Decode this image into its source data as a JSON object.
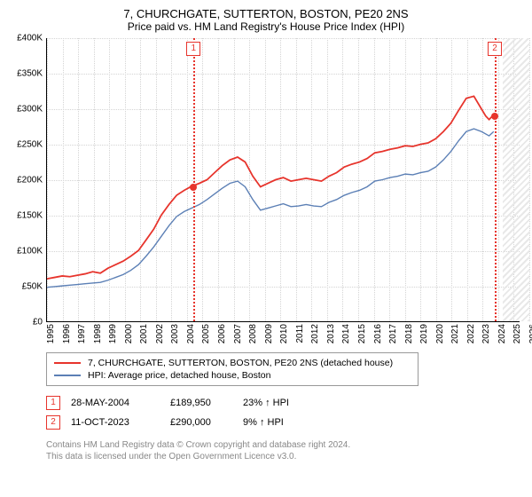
{
  "title": "7, CHURCHGATE, SUTTERTON, BOSTON, PE20 2NS",
  "subtitle": "Price paid vs. HM Land Registry's House Price Index (HPI)",
  "chart": {
    "type": "line",
    "ylim": [
      0,
      400000
    ],
    "ytick_step": 50000,
    "ytick_labels": [
      "£0",
      "£50K",
      "£100K",
      "£150K",
      "£200K",
      "£250K",
      "£300K",
      "£350K",
      "£400K"
    ],
    "xlim": [
      1995,
      2026
    ],
    "xtick_labels": [
      "1995",
      "1996",
      "1997",
      "1998",
      "1999",
      "2000",
      "2001",
      "2002",
      "2003",
      "2004",
      "2005",
      "2006",
      "2007",
      "2008",
      "2009",
      "2010",
      "2011",
      "2012",
      "2013",
      "2014",
      "2015",
      "2016",
      "2017",
      "2018",
      "2019",
      "2020",
      "2021",
      "2022",
      "2023",
      "2024",
      "2025",
      "2026"
    ],
    "grid_color": "#d4d4d4",
    "background_color": "#ffffff",
    "series": [
      {
        "name": "property",
        "label": "7, CHURCHGATE, SUTTERTON, BOSTON, PE20 2NS (detached house)",
        "color": "#e7342c",
        "width": 1.8,
        "data": [
          [
            1995,
            60000
          ],
          [
            1995.5,
            62000
          ],
          [
            1996,
            64000
          ],
          [
            1996.5,
            63000
          ],
          [
            1997,
            65000
          ],
          [
            1997.5,
            67000
          ],
          [
            1998,
            70000
          ],
          [
            1998.5,
            68000
          ],
          [
            1999,
            75000
          ],
          [
            1999.5,
            80000
          ],
          [
            2000,
            85000
          ],
          [
            2000.5,
            92000
          ],
          [
            2001,
            100000
          ],
          [
            2001.5,
            115000
          ],
          [
            2002,
            130000
          ],
          [
            2002.5,
            150000
          ],
          [
            2003,
            165000
          ],
          [
            2003.5,
            178000
          ],
          [
            2004,
            185000
          ],
          [
            2004.42,
            189950
          ],
          [
            2005,
            195000
          ],
          [
            2005.5,
            200000
          ],
          [
            2006,
            210000
          ],
          [
            2006.5,
            220000
          ],
          [
            2007,
            228000
          ],
          [
            2007.5,
            232000
          ],
          [
            2008,
            225000
          ],
          [
            2008.5,
            205000
          ],
          [
            2009,
            190000
          ],
          [
            2009.5,
            195000
          ],
          [
            2010,
            200000
          ],
          [
            2010.5,
            203000
          ],
          [
            2011,
            198000
          ],
          [
            2011.5,
            200000
          ],
          [
            2012,
            202000
          ],
          [
            2012.5,
            200000
          ],
          [
            2013,
            198000
          ],
          [
            2013.5,
            205000
          ],
          [
            2014,
            210000
          ],
          [
            2014.5,
            218000
          ],
          [
            2015,
            222000
          ],
          [
            2015.5,
            225000
          ],
          [
            2016,
            230000
          ],
          [
            2016.5,
            238000
          ],
          [
            2017,
            240000
          ],
          [
            2017.5,
            243000
          ],
          [
            2018,
            245000
          ],
          [
            2018.5,
            248000
          ],
          [
            2019,
            247000
          ],
          [
            2019.5,
            250000
          ],
          [
            2020,
            252000
          ],
          [
            2020.5,
            258000
          ],
          [
            2021,
            268000
          ],
          [
            2021.5,
            280000
          ],
          [
            2022,
            298000
          ],
          [
            2022.5,
            315000
          ],
          [
            2023,
            318000
          ],
          [
            2023.5,
            300000
          ],
          [
            2023.78,
            290000
          ],
          [
            2024,
            285000
          ],
          [
            2024.3,
            292000
          ]
        ]
      },
      {
        "name": "hpi",
        "label": "HPI: Average price, detached house, Boston",
        "color": "#5b7fb5",
        "width": 1.4,
        "data": [
          [
            1995,
            48000
          ],
          [
            1995.5,
            49000
          ],
          [
            1996,
            50000
          ],
          [
            1996.5,
            51000
          ],
          [
            1997,
            52000
          ],
          [
            1997.5,
            53000
          ],
          [
            1998,
            54000
          ],
          [
            1998.5,
            55000
          ],
          [
            1999,
            58000
          ],
          [
            1999.5,
            62000
          ],
          [
            2000,
            66000
          ],
          [
            2000.5,
            72000
          ],
          [
            2001,
            80000
          ],
          [
            2001.5,
            92000
          ],
          [
            2002,
            105000
          ],
          [
            2002.5,
            120000
          ],
          [
            2003,
            135000
          ],
          [
            2003.5,
            148000
          ],
          [
            2004,
            155000
          ],
          [
            2004.5,
            160000
          ],
          [
            2005,
            165000
          ],
          [
            2005.5,
            172000
          ],
          [
            2006,
            180000
          ],
          [
            2006.5,
            188000
          ],
          [
            2007,
            195000
          ],
          [
            2007.5,
            198000
          ],
          [
            2008,
            190000
          ],
          [
            2008.5,
            172000
          ],
          [
            2009,
            157000
          ],
          [
            2009.5,
            160000
          ],
          [
            2010,
            163000
          ],
          [
            2010.5,
            166000
          ],
          [
            2011,
            162000
          ],
          [
            2011.5,
            163000
          ],
          [
            2012,
            165000
          ],
          [
            2012.5,
            163000
          ],
          [
            2013,
            162000
          ],
          [
            2013.5,
            168000
          ],
          [
            2014,
            172000
          ],
          [
            2014.5,
            178000
          ],
          [
            2015,
            182000
          ],
          [
            2015.5,
            185000
          ],
          [
            2016,
            190000
          ],
          [
            2016.5,
            198000
          ],
          [
            2017,
            200000
          ],
          [
            2017.5,
            203000
          ],
          [
            2018,
            205000
          ],
          [
            2018.5,
            208000
          ],
          [
            2019,
            207000
          ],
          [
            2019.5,
            210000
          ],
          [
            2020,
            212000
          ],
          [
            2020.5,
            218000
          ],
          [
            2021,
            228000
          ],
          [
            2021.5,
            240000
          ],
          [
            2022,
            255000
          ],
          [
            2022.5,
            268000
          ],
          [
            2023,
            272000
          ],
          [
            2023.5,
            268000
          ],
          [
            2024,
            262000
          ],
          [
            2024.3,
            268000
          ]
        ]
      }
    ],
    "markers": [
      {
        "num": "1",
        "year": 2004.42,
        "price": 189950
      },
      {
        "num": "2",
        "year": 2023.78,
        "price": 290000
      }
    ],
    "shade_start": 2024.3,
    "shade_end": 2026
  },
  "legend": {
    "items": [
      {
        "color": "#e7342c",
        "label": "7, CHURCHGATE, SUTTERTON, BOSTON, PE20 2NS (detached house)"
      },
      {
        "color": "#5b7fb5",
        "label": "HPI: Average price, detached house, Boston"
      }
    ]
  },
  "sales": [
    {
      "num": "1",
      "date": "28-MAY-2004",
      "price": "£189,950",
      "pct": "23% ↑ HPI"
    },
    {
      "num": "2",
      "date": "11-OCT-2023",
      "price": "£290,000",
      "pct": "9% ↑ HPI"
    }
  ],
  "footer": {
    "line1": "Contains HM Land Registry data © Crown copyright and database right 2024.",
    "line2": "This data is licensed under the Open Government Licence v3.0."
  }
}
